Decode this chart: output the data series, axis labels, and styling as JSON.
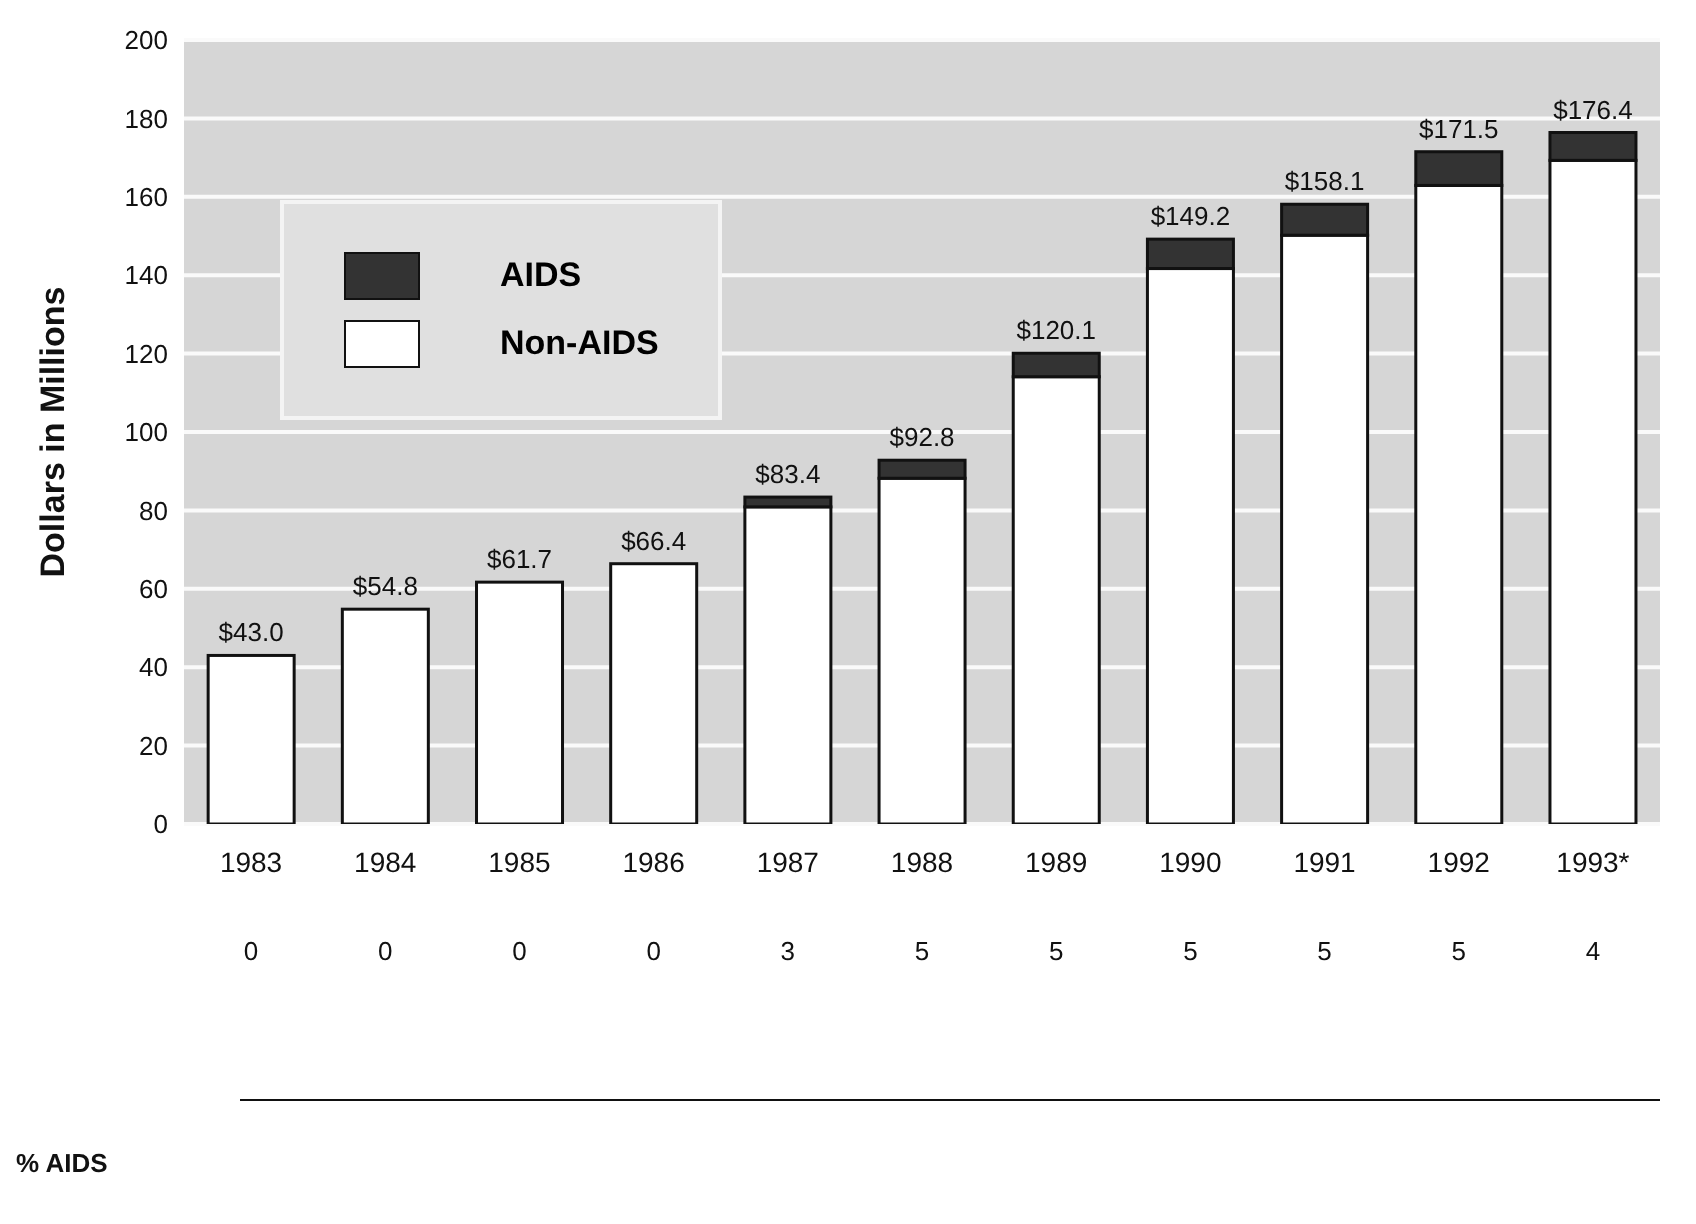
{
  "chart_data": {
    "type": "bar",
    "stacked": true,
    "ylabel": "Dollars in Millions",
    "categories": [
      "1983",
      "1984",
      "1985",
      "1986",
      "1987",
      "1988",
      "1989",
      "1990",
      "1991",
      "1992",
      "1993*"
    ],
    "series": [
      {
        "name": "Non-AIDS",
        "color": "#ffffff",
        "values": [
          43.0,
          54.8,
          61.7,
          66.4,
          80.9,
          88.2,
          114.1,
          141.7,
          150.2,
          162.9,
          169.3
        ]
      },
      {
        "name": "AIDS",
        "color": "#333333",
        "values": [
          0,
          0,
          0,
          0,
          2.5,
          4.6,
          6.0,
          7.5,
          7.9,
          8.6,
          7.1
        ]
      }
    ],
    "totals": [
      "$43.0",
      "$54.8",
      "$61.7",
      "$66.4",
      "$83.4",
      "$92.8",
      "$120.1",
      "$149.2",
      "$158.1",
      "$171.5",
      "$176.4"
    ],
    "ylim": [
      0,
      200
    ],
    "yticks": [
      0,
      20,
      40,
      60,
      80,
      100,
      120,
      140,
      160,
      180,
      200
    ],
    "grid": "y",
    "legend": "top left",
    "annotations": [
      "% AIDS",
      "0",
      "0",
      "0",
      "0",
      "3",
      "5",
      "5",
      "5",
      "5",
      "5",
      "4"
    ]
  }
}
